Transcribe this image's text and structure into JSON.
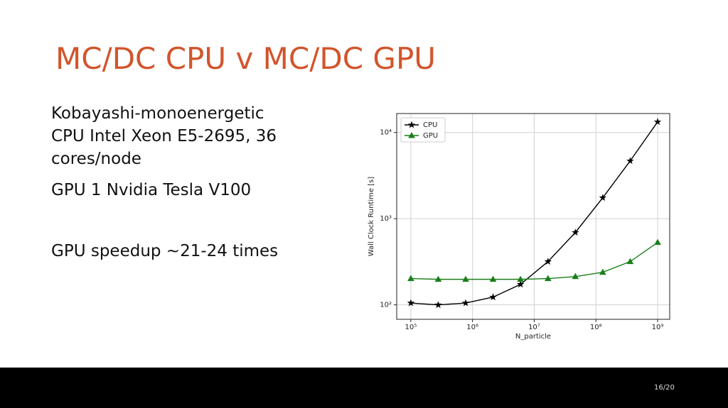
{
  "title": "MC/DC CPU v MC/DC GPU",
  "paragraphs": [
    "Kobayashi-monoenergetic",
    "CPU Intel Xeon E5-2695, 36 cores/node",
    "GPU 1 Nvidia Tesla V100",
    "GPU speedup ~21-24 times"
  ],
  "page_number": "16/20",
  "chart_data": {
    "type": "line",
    "x_label": "N_particle",
    "y_label": "Wall Clock Runtime [s]",
    "x": [
      100000,
      278000,
      774000,
      2150000,
      5990000,
      16700000,
      46400000,
      129000000,
      359000000,
      1000000000
    ],
    "series": [
      {
        "name": "CPU",
        "color": "#000000",
        "marker": "star",
        "values": [
          105,
          100,
          105,
          123,
          173,
          318,
          692,
          1750,
          4680,
          13300
        ]
      },
      {
        "name": "GPU",
        "color": "#1a7f1a",
        "marker": "triangle",
        "values": [
          202,
          198,
          198,
          198,
          198,
          202,
          213,
          239,
          318,
          530
        ]
      }
    ],
    "xscale": "log",
    "yscale": "log",
    "xlim": [
      59000,
      1570000000
    ],
    "ylim": [
      68,
      16600
    ],
    "xticks": [
      {
        "value": 100000,
        "label": "10⁵"
      },
      {
        "value": 1000000,
        "label": "10⁶"
      },
      {
        "value": 10000000,
        "label": "10⁷"
      },
      {
        "value": 100000000,
        "label": "10⁸"
      },
      {
        "value": 1000000000,
        "label": "10⁹"
      }
    ],
    "yticks": [
      {
        "value": 100,
        "label": "10²"
      },
      {
        "value": 1000,
        "label": "10³"
      },
      {
        "value": 10000,
        "label": "10⁴"
      }
    ],
    "grid": true,
    "legend": "upper-left"
  }
}
